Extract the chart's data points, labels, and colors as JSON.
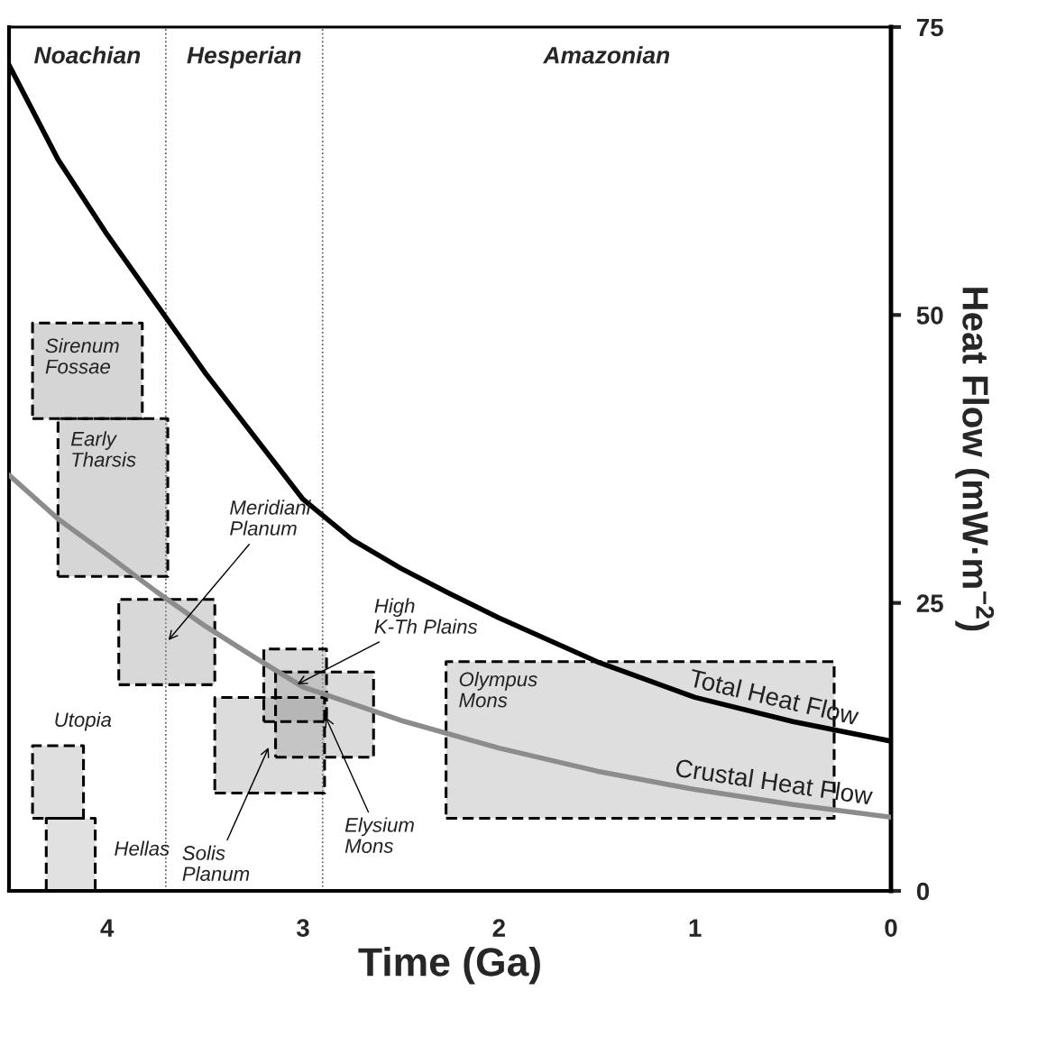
{
  "chart_data": {
    "type": "line",
    "xlabel": "Time (Ga)",
    "ylabel": "Heat Flow (mW·m$^{−2}$)",
    "xlim": [
      4.5,
      0
    ],
    "xticks": [
      4,
      3,
      2,
      1,
      0
    ],
    "ylim": [
      0,
      75
    ],
    "yticks": [
      0,
      25,
      50,
      75
    ],
    "annotations": [
      "Noachian",
      "Hesperian",
      "Amazonian"
    ],
    "ref_lines": [
      {
        "axis": "x",
        "value": 3.7,
        "line_style": "dotted",
        "color": "#555555"
      },
      {
        "axis": "x",
        "value": 2.9,
        "line_style": "dotted",
        "color": "#555555"
      }
    ],
    "series": [
      {
        "type": "area",
        "name": "Sirenum\nFossae",
        "color": "#000000",
        "line_style": "dashed",
        "x": [
          4.38,
          3.82
        ],
        "values": [
          null,
          null
        ],
        "upper": [
          49.3,
          49.3
        ],
        "lower": [
          41.0,
          41.0
        ]
      },
      {
        "type": "area",
        "name": "Early\nTharsis",
        "color": "#000000",
        "line_style": "dashed",
        "x": [
          4.25,
          3.69
        ],
        "values": [
          null,
          null
        ],
        "upper": [
          41.0,
          41.0
        ],
        "lower": [
          27.3,
          27.3
        ]
      },
      {
        "type": "area",
        "name": "Meridiani\nPlanum",
        "color": "#000000",
        "line_style": "dashed",
        "x": [
          3.94,
          3.45
        ],
        "values": [
          null,
          null
        ],
        "upper": [
          25.3,
          25.3
        ],
        "lower": [
          17.9,
          17.9
        ]
      },
      {
        "type": "area",
        "name": "High\nK-Th Plains",
        "color": "#000000",
        "line_style": "dashed",
        "x": [
          3.2,
          2.88
        ],
        "values": [
          null,
          null
        ],
        "upper": [
          21.0,
          21.0
        ],
        "lower": [
          14.7,
          14.7
        ]
      },
      {
        "type": "area",
        "name": "Elysium\nMons",
        "color": "#000000",
        "line_style": "dashed",
        "x": [
          3.14,
          2.64
        ],
        "values": [
          null,
          null
        ],
        "upper": [
          19.0,
          19.0
        ],
        "lower": [
          11.6,
          11.6
        ]
      },
      {
        "type": "area",
        "name": "Solis\nPlanum",
        "color": "#000000",
        "line_style": "dashed",
        "x": [
          3.45,
          2.89
        ],
        "values": [
          null,
          null
        ],
        "upper": [
          16.8,
          16.8
        ],
        "lower": [
          8.5,
          8.5
        ]
      },
      {
        "type": "area",
        "name": "Olympus\nMons",
        "color": "#000000",
        "line_style": "dashed",
        "x": [
          2.27,
          0.29
        ],
        "values": [
          null,
          null
        ],
        "upper": [
          19.9,
          19.9
        ],
        "lower": [
          6.3,
          6.3
        ]
      },
      {
        "type": "area",
        "name": "Utopia",
        "color": "#000000",
        "line_style": "dashed",
        "x": [
          4.38,
          4.12
        ],
        "values": [
          null,
          null
        ],
        "upper": [
          12.6,
          12.6
        ],
        "lower": [
          6.3,
          6.3
        ]
      },
      {
        "type": "area",
        "name": "Hellas",
        "color": "#000000",
        "line_style": "dashed",
        "x": [
          4.31,
          4.06
        ],
        "values": [
          null,
          null
        ],
        "upper": [
          6.3,
          6.3
        ],
        "lower": [
          0,
          0
        ]
      },
      {
        "name": "Total Heat Flow",
        "color": "#000000",
        "line_style": "solid",
        "x": [
          4.5,
          4.25,
          4.0,
          3.75,
          3.5,
          3.25,
          3.0,
          2.75,
          2.5,
          2.25,
          2.0,
          1.5,
          1.0,
          0.5,
          0
        ],
        "values": [
          71.7,
          63.5,
          57.0,
          51.0,
          45.0,
          39.5,
          34.0,
          30.5,
          28.0,
          25.8,
          23.7,
          19.9,
          16.8,
          14.7,
          13.0
        ]
      },
      {
        "name": "Crustal Heat Flow",
        "color": "#8c8c8c",
        "line_style": "solid",
        "x": [
          4.5,
          4.25,
          4.0,
          3.75,
          3.5,
          3.25,
          3.0,
          2.5,
          2.0,
          1.5,
          1.0,
          0.5,
          0
        ],
        "values": [
          36.1,
          32.3,
          29.2,
          26.0,
          23.0,
          20.3,
          17.7,
          14.8,
          12.4,
          10.4,
          8.8,
          7.5,
          6.4
        ]
      }
    ]
  }
}
